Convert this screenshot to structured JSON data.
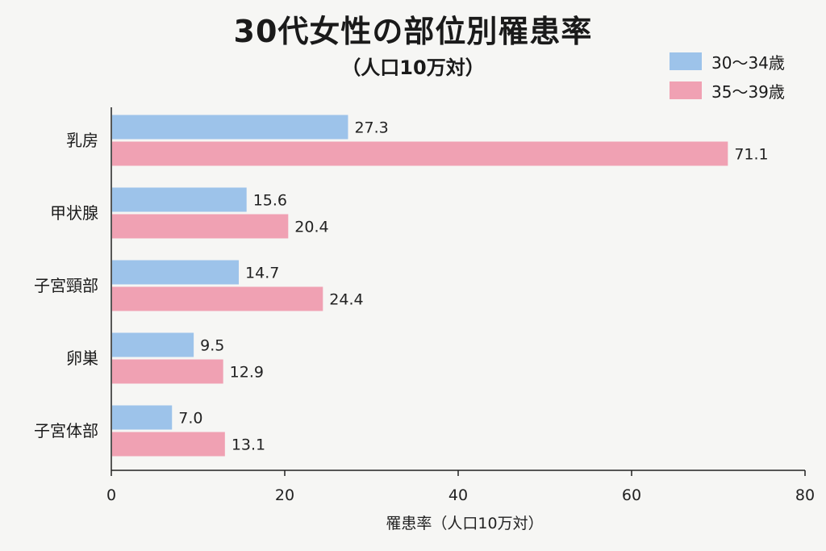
{
  "chart_data": {
    "type": "bar",
    "orientation": "horizontal",
    "title": "30代女性の部位別罹患率",
    "subtitle": "（人口10万対）",
    "xlabel": "罹患率（人口10万対）",
    "ylabel": "",
    "xlim": [
      0,
      80
    ],
    "xticks": [
      "0",
      "20",
      "40",
      "60",
      "80"
    ],
    "grid": false,
    "legend_position": "top-right",
    "categories": [
      "乳房",
      "甲状腺",
      "子宮頸部",
      "卵巣",
      "子宮体部"
    ],
    "series": [
      {
        "name": "30〜34歳",
        "color": "#9dc3ea",
        "values": [
          27.3,
          15.6,
          14.7,
          9.5,
          7.0
        ]
      },
      {
        "name": "35〜39歳",
        "color": "#f0a1b3",
        "values": [
          71.1,
          20.4,
          24.4,
          12.9,
          13.1
        ]
      }
    ],
    "value_labels": [
      [
        "27.3",
        "15.6",
        "14.7",
        "9.5",
        "7.0"
      ],
      [
        "71.1",
        "20.4",
        "24.4",
        "12.9",
        "13.1"
      ]
    ]
  }
}
